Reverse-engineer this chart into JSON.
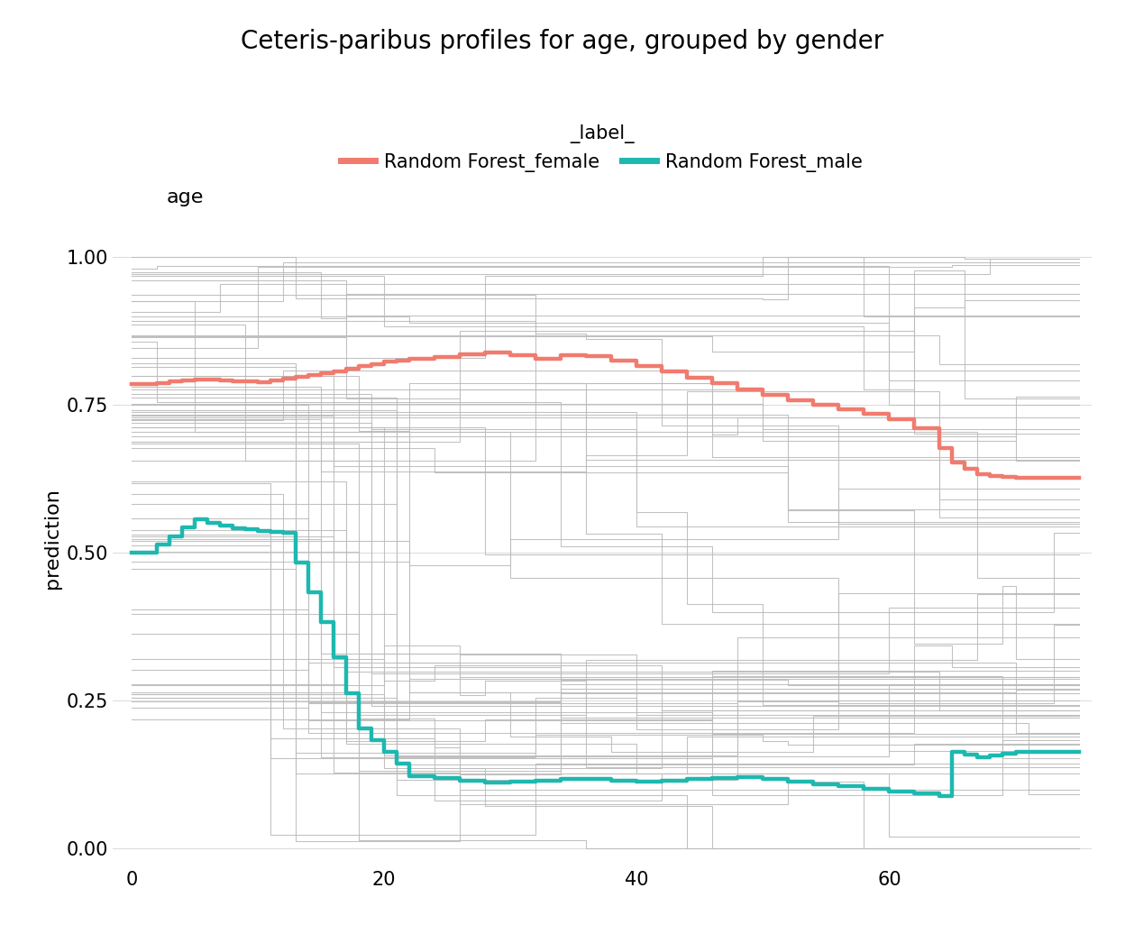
{
  "title": "Ceteris-paribus profiles for age, grouped by gender",
  "xlabel_above": "age",
  "ylabel": "prediction",
  "female_color": "#f07b6e",
  "male_color": "#1db8b0",
  "individual_color": "#bbbbbb",
  "background_color": "#ffffff",
  "ylim": [
    -0.03,
    1.08
  ],
  "xlim": [
    -1.5,
    76
  ],
  "yticks": [
    0.0,
    0.25,
    0.5,
    0.75,
    1.0
  ],
  "xticks": [
    0,
    20,
    40,
    60
  ],
  "legend_label": "_label_",
  "legend_female": "Random Forest_female",
  "legend_male": "Random Forest_male",
  "title_fontsize": 20,
  "axis_fontsize": 16,
  "tick_fontsize": 15,
  "legend_fontsize": 15,
  "line_lw_individual": 0.75,
  "line_lw_mean": 3.2,
  "n_female": 35,
  "n_male": 40,
  "seed": 77
}
